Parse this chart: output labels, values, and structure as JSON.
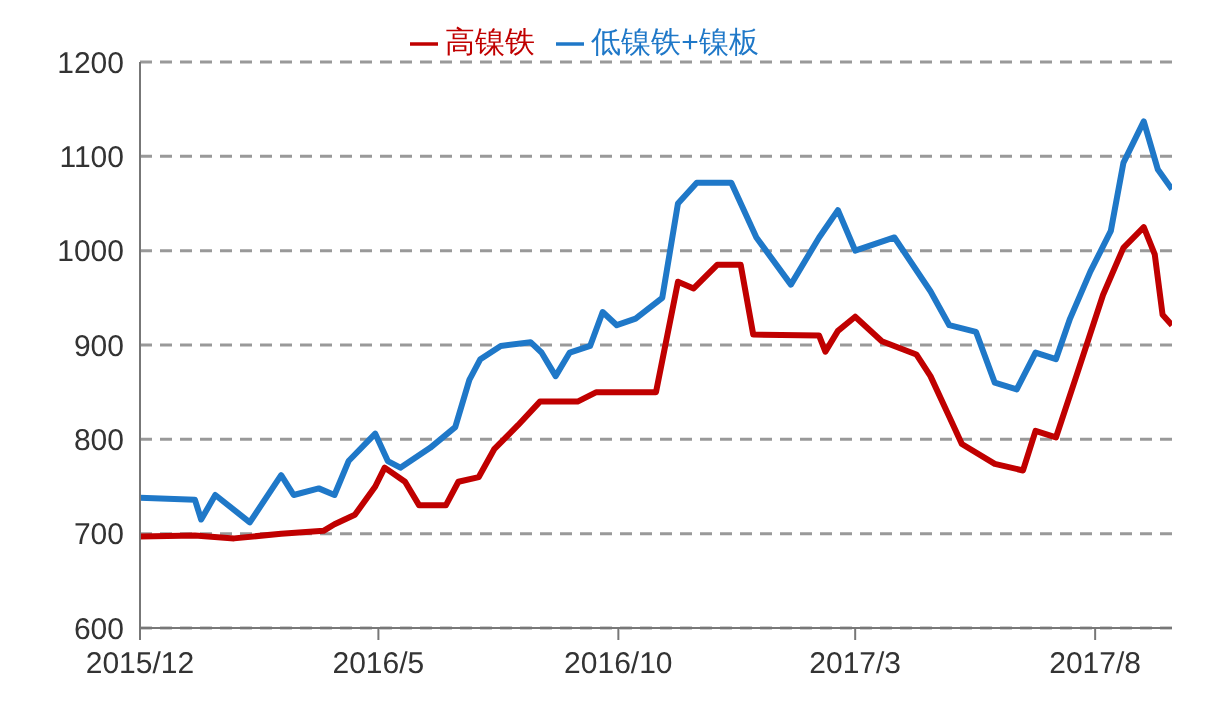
{
  "chart_data": {
    "type": "line",
    "legend": "top",
    "grid": "y",
    "marker": "none",
    "line_style": "solid",
    "xlim": [
      "2015-12-01",
      "2017-09-19"
    ],
    "xticks": [
      {
        "value": "2015-12",
        "label": "2015/12"
      },
      {
        "value": "2016-05",
        "label": "2016/5"
      },
      {
        "value": "2016-10",
        "label": "2016/10"
      },
      {
        "value": "2017-03",
        "label": "2017/3"
      },
      {
        "value": "2017-08",
        "label": "2017/8"
      }
    ],
    "ylim": [
      600,
      1200
    ],
    "yticks": [
      600,
      700,
      800,
      900,
      1000,
      1100,
      1200
    ],
    "series": [
      {
        "name": "高镍铁",
        "color": "#c00000",
        "x": [
          "2015-12-01",
          "2016-01-05",
          "2016-01-30",
          "2016-02-29",
          "2016-03-27",
          "2016-04-03",
          "2016-04-16",
          "2016-04-29",
          "2016-05-05",
          "2016-05-18",
          "2016-05-27",
          "2016-06-13",
          "2016-06-21",
          "2016-07-04",
          "2016-07-14",
          "2016-07-29",
          "2016-08-12",
          "2016-09-05",
          "2016-09-17",
          "2016-10-25",
          "2016-11-08",
          "2016-11-18",
          "2016-12-03",
          "2016-12-18",
          "2016-12-26",
          "2017-02-06",
          "2017-02-10",
          "2017-02-18",
          "2017-03-01",
          "2017-03-18",
          "2017-04-09",
          "2017-04-18",
          "2017-04-30",
          "2017-05-08",
          "2017-05-29",
          "2017-06-16",
          "2017-06-24",
          "2017-07-07",
          "2017-07-20",
          "2017-08-06",
          "2017-08-19",
          "2017-09-01",
          "2017-09-08",
          "2017-09-13",
          "2017-09-19"
        ],
        "values": [
          697,
          698,
          695,
          700,
          703,
          710,
          720,
          750,
          770,
          755,
          730,
          730,
          755,
          760,
          790,
          815,
          840,
          840,
          850,
          850,
          967,
          960,
          985,
          985,
          911,
          910,
          893,
          915,
          930,
          904,
          890,
          867,
          824,
          795,
          774,
          767,
          809,
          802,
          867,
          953,
          1003,
          1025,
          996,
          932,
          921
        ]
      },
      {
        "name": "低镍铁+镍板",
        "color": "#1f78c8",
        "x": [
          "2015-12-01",
          "2016-01-05",
          "2016-01-09",
          "2016-01-18",
          "2016-02-09",
          "2016-02-29",
          "2016-03-08",
          "2016-03-24",
          "2016-04-03",
          "2016-04-12",
          "2016-04-29",
          "2016-05-07",
          "2016-05-15",
          "2016-06-03",
          "2016-06-19",
          "2016-06-28",
          "2016-07-05",
          "2016-07-18",
          "2016-08-06",
          "2016-08-13",
          "2016-08-22",
          "2016-08-31",
          "2016-09-13",
          "2016-09-21",
          "2016-09-30",
          "2016-10-12",
          "2016-10-29",
          "2016-11-08",
          "2016-11-20",
          "2016-12-12",
          "2016-12-28",
          "2017-01-19",
          "2017-02-06",
          "2017-02-18",
          "2017-03-01",
          "2017-03-26",
          "2017-04-18",
          "2017-04-30",
          "2017-05-17",
          "2017-05-29",
          "2017-06-12",
          "2017-06-24",
          "2017-07-07",
          "2017-07-16",
          "2017-07-29",
          "2017-08-11",
          "2017-08-19",
          "2017-09-01",
          "2017-09-10",
          "2017-09-19"
        ],
        "values": [
          738,
          736,
          715,
          741,
          712,
          762,
          741,
          748,
          741,
          777,
          806,
          777,
          770,
          791,
          813,
          863,
          885,
          899,
          903,
          892,
          867,
          892,
          899,
          935,
          921,
          928,
          950,
          1050,
          1072,
          1072,
          1014,
          964,
          1014,
          1043,
          1000,
          1014,
          957,
          921,
          914,
          860,
          853,
          892,
          885,
          928,
          978,
          1021,
          1093,
          1137,
          1086,
          1065
        ]
      }
    ]
  }
}
